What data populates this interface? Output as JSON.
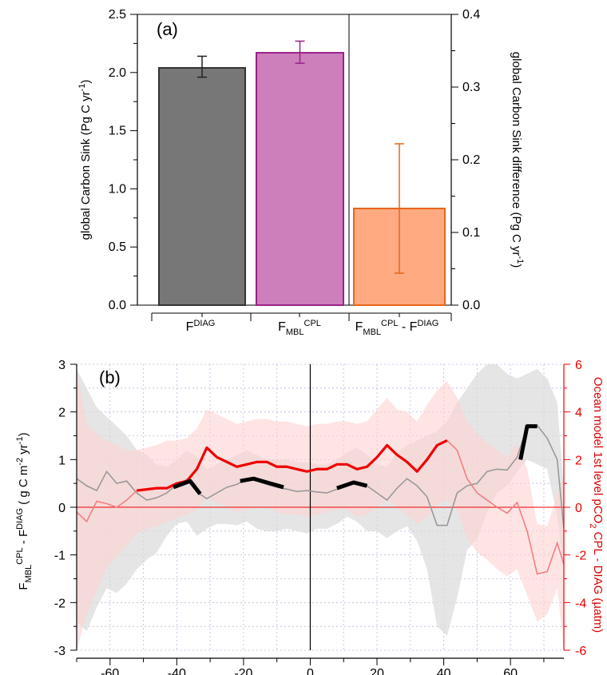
{
  "chart_data": [
    {
      "type": "bar",
      "panel_label": "(a)",
      "ylabel": "global Carbon Sink (Pg C yr",
      "ylabel_sup": "-1",
      "ylabel_end": ")",
      "ylim": [
        0,
        2.5
      ],
      "yticks": [
        "0.0",
        "0.5",
        "1.0",
        "1.5",
        "2.0",
        "2.5"
      ],
      "y2label": "global Carbon Sink difference (Pg C yr",
      "y2label_sup": "-1",
      "y2label_end": ")",
      "y2lim": [
        0,
        0.4
      ],
      "y2ticks": [
        "0.0",
        "0.1",
        "0.2",
        "0.3",
        "0.4"
      ],
      "categories": [
        {
          "base": "F",
          "sup": "DIAG",
          "sub": "",
          "tail": "",
          "tail_sup": ""
        },
        {
          "base": "F",
          "sup": "CPL",
          "sub": "MBL",
          "tail": "",
          "tail_sup": ""
        },
        {
          "base": "F",
          "sup": "CPL",
          "sub": "MBL",
          "tail": " - F",
          "tail_sup": "DIAG"
        }
      ],
      "bars": [
        {
          "value": 2.04,
          "err_low": 1.96,
          "err_high": 2.14,
          "axis": "left",
          "fill": "#777777",
          "stroke": "#333333",
          "err_color": "#222222"
        },
        {
          "value": 2.17,
          "err_low": 2.08,
          "err_high": 2.27,
          "axis": "left",
          "fill": "#cc7fbb",
          "stroke": "#992288",
          "err_color": "#992288"
        },
        {
          "value": 0.133,
          "err_low": 0.044,
          "err_high": 0.222,
          "axis": "right",
          "fill": "#ffaa80",
          "stroke": "#e8651c",
          "err_color": "#e8651c"
        }
      ]
    },
    {
      "type": "line",
      "panel_label": "(b)",
      "ylabel_parts": {
        "base": "F",
        "sub": "MBL",
        "sup": "CPL",
        "mid": " - F",
        "sup2": "DIAG",
        "end": " ( g C m",
        "sup3": "-2",
        "end2": " yr",
        "sup4": "-1",
        "end3": ")"
      },
      "ylim": [
        -3,
        3
      ],
      "yticks": [
        "-3",
        "-2",
        "-1",
        "0",
        "1",
        "2",
        "3"
      ],
      "y2label_parts": {
        "base": "Ocean model 1st level pCO",
        "sub": "2",
        "end": " CPL - DIAG (µatm)"
      },
      "y2lim": [
        -6,
        6
      ],
      "y2ticks": [
        "-6",
        "-4",
        "-2",
        "0",
        "2",
        "4",
        "6"
      ],
      "xlim": [
        -70,
        76
      ],
      "xticks": [
        "-60",
        "-40",
        "-20",
        "0",
        "20",
        "40",
        "60"
      ],
      "xtick_values": [
        -60,
        -40,
        -20,
        0,
        20,
        40,
        60
      ],
      "colors": {
        "flux": "#999999",
        "flux_band": "#dcdcdc",
        "sig": "#000000",
        "pco2": "#ee0000",
        "pco2_light": "#f08080",
        "pco2_band": "#ffd2d2"
      },
      "series": [
        {
          "x": [
            -70,
            -67,
            -64,
            -61,
            -58,
            -55,
            -52,
            -49,
            -46,
            -43,
            -40,
            -37,
            -34,
            -31,
            -28,
            -25,
            -22,
            -19,
            -16,
            -13,
            -10,
            -7,
            -4,
            -1,
            2,
            5,
            8,
            11,
            14,
            17,
            20,
            23,
            26,
            29,
            32,
            35,
            38,
            41,
            44,
            47,
            50,
            53,
            56,
            59,
            62,
            65,
            68,
            71,
            74,
            76
          ],
          "flux": [
            0.6,
            0.45,
            0.35,
            0.75,
            0.5,
            0.55,
            0.3,
            0.15,
            0.2,
            0.3,
            0.48,
            0.58,
            0.32,
            0.18,
            0.3,
            0.42,
            0.48,
            0.6,
            0.55,
            0.48,
            0.42,
            0.38,
            0.33,
            0.35,
            0.32,
            0.3,
            0.38,
            0.48,
            0.52,
            0.45,
            0.3,
            0.15,
            0.4,
            0.6,
            0.45,
            0.22,
            -0.38,
            -0.38,
            0.3,
            0.45,
            0.5,
            0.75,
            0.8,
            0.78,
            1.05,
            1.7,
            1.72,
            1.45,
            1.0,
            -0.45
          ],
          "band_low": [
            -2.4,
            -2.6,
            -2.1,
            -1.7,
            -1.8,
            -1.6,
            -1.3,
            -1.1,
            -0.95,
            -0.6,
            -0.35,
            -0.3,
            -0.6,
            -0.45,
            -0.35,
            -0.35,
            -0.38,
            -0.3,
            -0.45,
            -0.5,
            -0.5,
            -0.45,
            -0.5,
            -0.55,
            -0.45,
            -0.45,
            -0.35,
            -0.2,
            -0.3,
            -0.5,
            -0.5,
            -0.65,
            -0.5,
            -0.4,
            -0.7,
            -1.3,
            -2.5,
            -2.7,
            -1.9,
            -0.9,
            -0.65,
            -0.1,
            0.3,
            0.45,
            0.75,
            1.0,
            0.9,
            0.8,
            -0.2,
            -1.3
          ],
          "band_high": [
            2.9,
            2.5,
            2.1,
            1.9,
            1.7,
            1.5,
            1.2,
            1.1,
            0.9,
            0.85,
            1.0,
            1.2,
            1.05,
            0.8,
            0.9,
            1.0,
            1.1,
            1.2,
            1.1,
            1.0,
            1.0,
            1.0,
            0.95,
            0.95,
            0.9,
            0.9,
            1.0,
            1.15,
            1.25,
            1.1,
            0.9,
            0.85,
            1.15,
            1.3,
            1.4,
            1.5,
            1.6,
            1.8,
            2.2,
            2.5,
            2.8,
            3.0,
            3.0,
            2.8,
            2.7,
            2.8,
            2.9,
            2.7,
            2.2,
            0.4
          ]
        },
        {
          "segments": [
            {
              "x": [
                -41,
                -36,
                -33
              ],
              "y": [
                0.42,
                0.55,
                0.28
              ]
            },
            {
              "x": [
                -21,
                -17,
                -13,
                -8
              ],
              "y": [
                0.55,
                0.6,
                0.52,
                0.42
              ]
            },
            {
              "x": [
                8,
                13,
                17
              ],
              "y": [
                0.4,
                0.52,
                0.45
              ]
            },
            {
              "x": [
                63,
                65,
                68
              ],
              "y": [
                1.0,
                1.7,
                1.7
              ]
            }
          ]
        },
        {
          "x": [
            -70,
            -67,
            -64,
            -61,
            -58,
            -55,
            -52,
            -49,
            -46,
            -43,
            -40,
            -37,
            -34,
            -31,
            -28,
            -25,
            -22,
            -19,
            -16,
            -13,
            -10,
            -7,
            -4,
            -1,
            2,
            5,
            8,
            11,
            14,
            17,
            20,
            23,
            26,
            29,
            32,
            35,
            38,
            41,
            44,
            47,
            50,
            53,
            56,
            59,
            62,
            65,
            68,
            71,
            74,
            76
          ],
          "pco2": [
            -0.2,
            -0.6,
            0.25,
            0.15,
            0.0,
            0.3,
            0.7,
            0.75,
            0.8,
            0.8,
            1.0,
            1.1,
            1.6,
            2.5,
            2.1,
            1.9,
            1.7,
            1.8,
            1.9,
            1.9,
            1.7,
            1.7,
            1.6,
            1.5,
            1.6,
            1.6,
            1.8,
            1.8,
            1.6,
            1.7,
            2.1,
            2.6,
            2.2,
            1.9,
            1.5,
            2.0,
            2.6,
            2.8,
            2.4,
            1.2,
            0.6,
            0.3,
            0.0,
            -0.25,
            0.2,
            -1.0,
            -2.8,
            -2.7,
            -1.5,
            -2.4
          ],
          "bold_range": [
            -52,
            42
          ],
          "band_low": [
            -6.0,
            -4.5,
            -3.5,
            -2.5,
            -2.1,
            -1.6,
            -1.1,
            -0.9,
            -0.8,
            -0.6,
            -0.45,
            -0.3,
            -0.1,
            0.4,
            0.2,
            0.0,
            -0.2,
            -0.1,
            0.0,
            0.0,
            -0.2,
            -0.3,
            -0.3,
            -0.4,
            -0.3,
            -0.2,
            -0.1,
            -0.1,
            -0.4,
            -0.3,
            0.0,
            0.3,
            0.0,
            -0.3,
            -0.7,
            -0.4,
            0.1,
            0.3,
            -0.1,
            -1.3,
            -1.9,
            -2.2,
            -2.6,
            -2.9,
            -2.6,
            -3.7,
            -4.8,
            -4.5,
            -3.4,
            -6.0
          ],
          "band_high": [
            5.7,
            3.5,
            3.1,
            2.8,
            2.6,
            2.4,
            2.4,
            2.5,
            2.6,
            2.8,
            2.8,
            2.9,
            3.3,
            4.1,
            3.9,
            3.7,
            3.5,
            3.6,
            3.7,
            3.7,
            3.6,
            3.6,
            3.5,
            3.4,
            3.5,
            3.5,
            3.6,
            3.6,
            3.5,
            3.6,
            4.1,
            4.6,
            4.1,
            4.0,
            3.6,
            4.3,
            4.9,
            5.3,
            4.6,
            3.6,
            3.1,
            2.7,
            2.4,
            2.1,
            2.7,
            1.6,
            -0.7,
            -0.8,
            0.5,
            1.3
          ]
        }
      ]
    }
  ]
}
